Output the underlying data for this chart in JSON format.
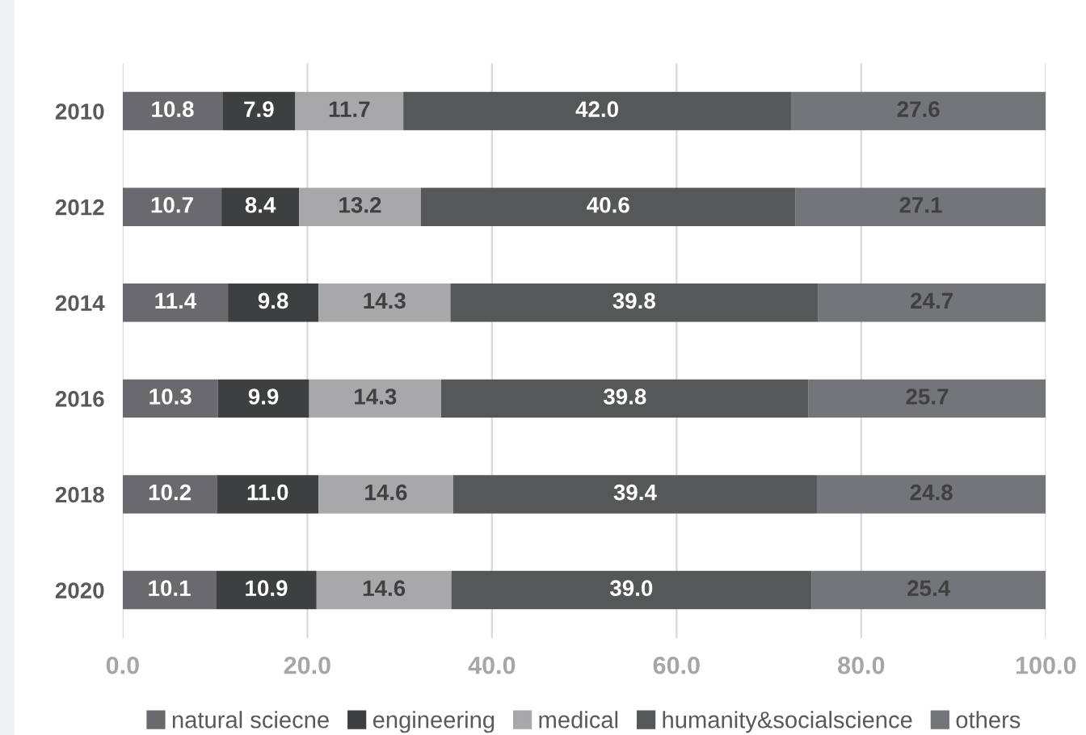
{
  "chart_data": {
    "type": "bar",
    "orientation": "horizontal",
    "stacked": true,
    "categories": [
      "2010",
      "2012",
      "2014",
      "2016",
      "2018",
      "2020"
    ],
    "series": [
      {
        "name": "natural sciecne",
        "color": "#6a6a6e",
        "values": [
          10.8,
          10.7,
          11.4,
          10.3,
          10.2,
          10.1
        ],
        "value_labels": [
          "10.8",
          "10.7",
          "11.4",
          "10.3",
          "10.2",
          "10.1"
        ]
      },
      {
        "name": "engineering",
        "color": "#3e3f41",
        "values": [
          7.9,
          8.4,
          9.8,
          9.9,
          11.0,
          10.9
        ],
        "value_labels": [
          "7.9",
          "8.4",
          "9.8",
          "9.9",
          "11.0",
          "10.9"
        ]
      },
      {
        "name": "medical",
        "color": "#a8a8ab",
        "values": [
          11.7,
          13.2,
          14.3,
          14.3,
          14.6,
          14.6
        ],
        "value_labels": [
          "11.7",
          "13.2",
          "14.3",
          "14.3",
          "14.6",
          "14.6"
        ]
      },
      {
        "name": "humanity&socialscience",
        "color": "#565759",
        "values": [
          42.0,
          40.6,
          39.8,
          39.8,
          39.4,
          39.0
        ],
        "value_labels": [
          "42.0",
          "40.6",
          "39.8",
          "39.8",
          "39.4",
          "39.0"
        ]
      },
      {
        "name": "others",
        "color": "#747579",
        "values": [
          27.6,
          27.1,
          24.7,
          25.7,
          24.8,
          25.4
        ],
        "value_labels": [
          "27.6",
          "27.1",
          "24.7",
          "25.7",
          "24.8",
          "25.4"
        ]
      }
    ],
    "xlim": [
      0,
      100
    ],
    "xticks": [
      {
        "value": 0,
        "label": "0.0"
      },
      {
        "value": 20,
        "label": "20.0"
      },
      {
        "value": 40,
        "label": "40.0"
      },
      {
        "value": 60,
        "label": "60.0"
      },
      {
        "value": 80,
        "label": "80.0"
      },
      {
        "value": 100,
        "label": "100.0"
      }
    ],
    "grid": "x",
    "legend": "bottom"
  }
}
